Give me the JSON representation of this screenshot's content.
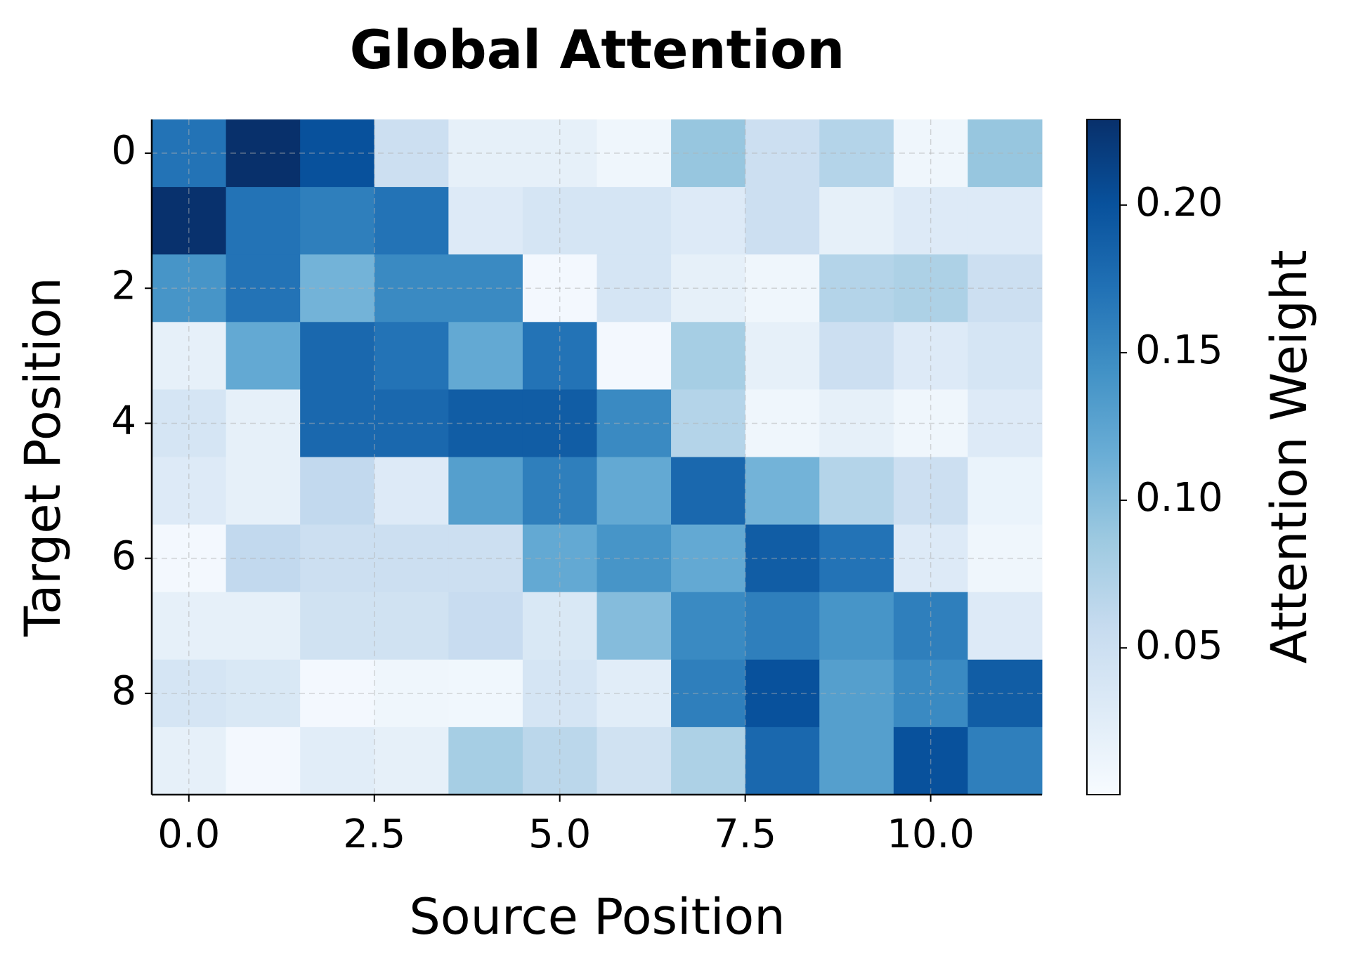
{
  "chart_data": {
    "type": "heatmap",
    "title": "Global Attention",
    "x_label": "Source Position",
    "y_label": "Target Position",
    "colorbar_label": "Attention Weight",
    "colormap": "Blues",
    "z": [
      [
        0.17,
        0.229,
        0.2,
        0.05,
        0.02,
        0.02,
        0.01,
        0.09,
        0.05,
        0.07,
        0.01,
        0.09
      ],
      [
        0.228,
        0.17,
        0.16,
        0.17,
        0.03,
        0.04,
        0.04,
        0.03,
        0.05,
        0.02,
        0.03,
        0.03
      ],
      [
        0.14,
        0.17,
        0.11,
        0.15,
        0.15,
        0.005,
        0.04,
        0.02,
        0.01,
        0.07,
        0.075,
        0.05
      ],
      [
        0.02,
        0.12,
        0.18,
        0.17,
        0.12,
        0.17,
        0.005,
        0.08,
        0.02,
        0.05,
        0.03,
        0.04
      ],
      [
        0.04,
        0.02,
        0.18,
        0.18,
        0.19,
        0.19,
        0.15,
        0.07,
        0.01,
        0.02,
        0.01,
        0.03
      ],
      [
        0.03,
        0.02,
        0.06,
        0.03,
        0.13,
        0.16,
        0.12,
        0.18,
        0.11,
        0.07,
        0.05,
        0.015
      ],
      [
        0.005,
        0.06,
        0.05,
        0.05,
        0.05,
        0.12,
        0.14,
        0.12,
        0.19,
        0.17,
        0.03,
        0.01
      ],
      [
        0.02,
        0.02,
        0.045,
        0.045,
        0.055,
        0.035,
        0.1,
        0.15,
        0.16,
        0.14,
        0.16,
        0.03
      ],
      [
        0.04,
        0.035,
        0.005,
        0.01,
        0.008,
        0.04,
        0.025,
        0.16,
        0.2,
        0.13,
        0.15,
        0.19
      ],
      [
        0.02,
        0.005,
        0.025,
        0.02,
        0.08,
        0.065,
        0.045,
        0.075,
        0.18,
        0.13,
        0.2,
        0.16
      ]
    ],
    "xlim": [
      -0.5,
      11.5
    ],
    "xticks": [
      {
        "value": 0,
        "label": "0.0"
      },
      2.5,
      {
        "value": 5,
        "label": "5.0"
      },
      7.5,
      {
        "value": 10,
        "label": "10.0"
      }
    ],
    "ylim": [
      9.5,
      -0.5
    ],
    "yticks": [
      0,
      2,
      4,
      6,
      8
    ],
    "clim": [
      0.0003,
      0.229
    ],
    "cticks": [
      0.05,
      {
        "value": 0.1,
        "label": "0.10"
      },
      0.15,
      {
        "value": 0.2,
        "label": "0.20"
      }
    ],
    "grid": true
  }
}
